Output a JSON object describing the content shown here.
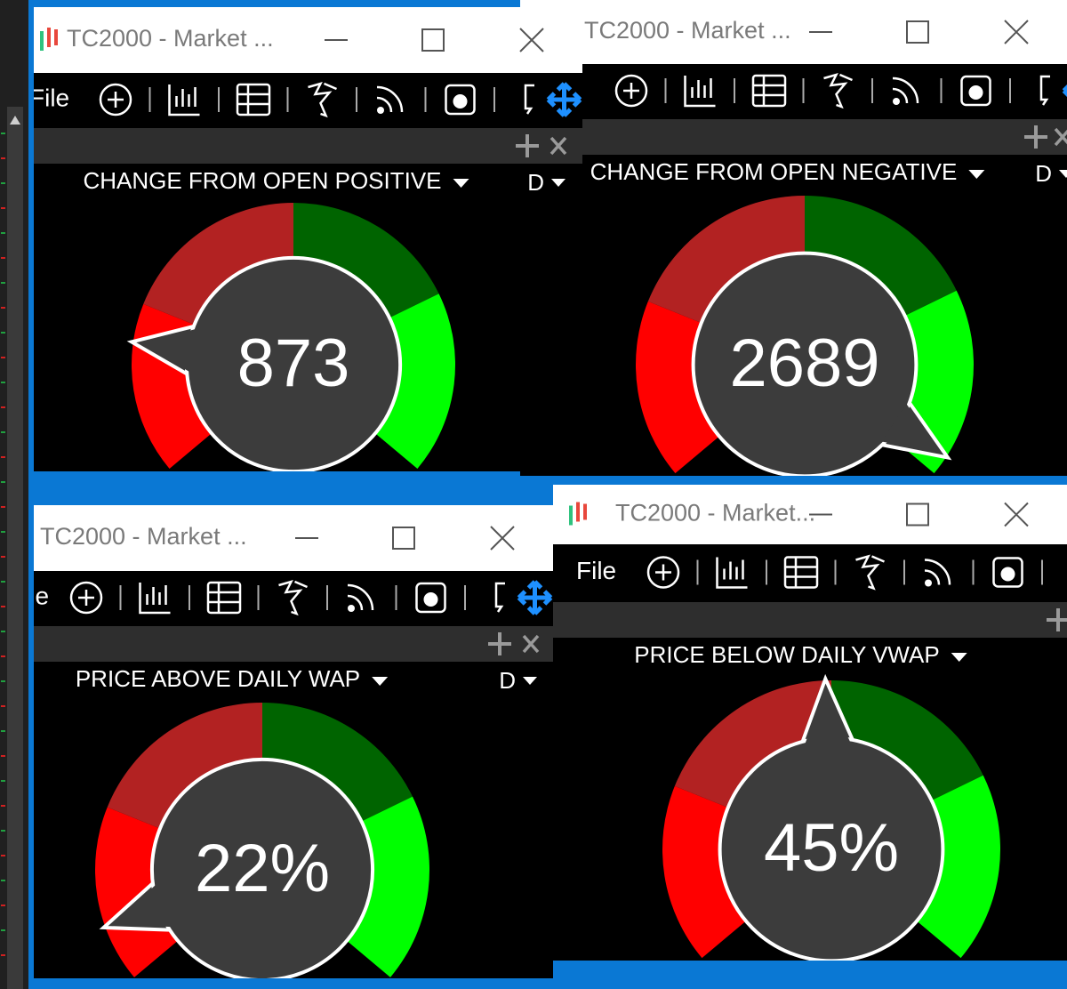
{
  "windows": [
    {
      "title": "TC2000 - Market ...",
      "menu": "File",
      "gauge_title": "CHANGE FROM OPEN POSITIVE",
      "timeframe": "D",
      "value": "873"
    },
    {
      "title": "TC2000 - Market ...",
      "gauge_title": "CHANGE FROM OPEN NEGATIVE",
      "timeframe": "D",
      "value": "2689"
    },
    {
      "title": "TC2000 - Market ...",
      "menu": "File",
      "gauge_title": "PRICE ABOVE DAILY WAP",
      "timeframe": "D",
      "value": "22%"
    },
    {
      "title": "TC2000 - Market...",
      "menu": "File",
      "gauge_title": "PRICE BELOW DAILY VWAP",
      "value": "45%"
    }
  ]
}
